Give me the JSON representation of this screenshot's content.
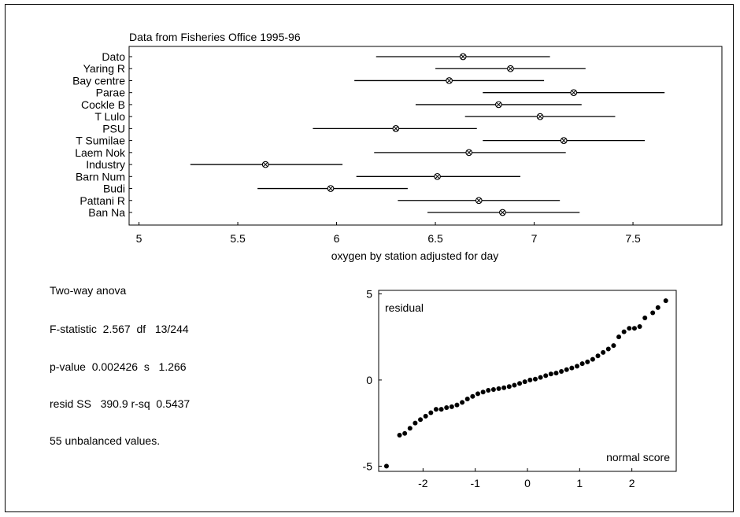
{
  "chart_data": [
    {
      "type": "interval",
      "title": "Data from Fisheries Office 1995-96",
      "xlabel": "oxygen by station adjusted for day",
      "xlim": [
        4.95,
        7.95
      ],
      "xticks": [
        "5",
        "5.5",
        "6",
        "6.5",
        "7",
        "7.5"
      ],
      "xtick_values": [
        5,
        5.5,
        6,
        6.5,
        7,
        7.5
      ],
      "grid": false,
      "stations": [
        {
          "label": "Dato",
          "mean": 6.64,
          "low": 6.2,
          "high": 7.08
        },
        {
          "label": "Yaring R",
          "mean": 6.88,
          "low": 6.5,
          "high": 7.26
        },
        {
          "label": "Bay centre",
          "mean": 6.57,
          "low": 6.09,
          "high": 7.05
        },
        {
          "label": "Parae",
          "mean": 7.2,
          "low": 6.74,
          "high": 7.66
        },
        {
          "label": "Cockle B",
          "mean": 6.82,
          "low": 6.4,
          "high": 7.24
        },
        {
          "label": "T Lulo",
          "mean": 7.03,
          "low": 6.65,
          "high": 7.41
        },
        {
          "label": "PSU",
          "mean": 6.3,
          "low": 5.88,
          "high": 6.71
        },
        {
          "label": "T Sumilae",
          "mean": 7.15,
          "low": 6.74,
          "high": 7.56
        },
        {
          "label": "Laem Nok",
          "mean": 6.67,
          "low": 6.19,
          "high": 7.16
        },
        {
          "label": "Industry",
          "mean": 5.64,
          "low": 5.26,
          "high": 6.03
        },
        {
          "label": "Barn Num",
          "mean": 6.51,
          "low": 6.1,
          "high": 6.93
        },
        {
          "label": "Budi",
          "mean": 5.97,
          "low": 5.6,
          "high": 6.36
        },
        {
          "label": "Pattani R",
          "mean": 6.72,
          "low": 6.31,
          "high": 7.13
        },
        {
          "label": "Ban Na",
          "mean": 6.84,
          "low": 6.46,
          "high": 7.23
        }
      ]
    },
    {
      "type": "scatter",
      "ylabel": "residual",
      "xlabel": "normal score",
      "xlim": [
        -2.85,
        2.85
      ],
      "ylim": [
        -5.3,
        5.2
      ],
      "xticks": [
        "-2",
        "-1",
        "0",
        "1",
        "2"
      ],
      "xtick_values": [
        -2,
        -1,
        0,
        1,
        2
      ],
      "yticks": [
        "5",
        "0",
        "-5"
      ],
      "ytick_values": [
        5,
        0,
        -5
      ],
      "grid": false,
      "points": [
        [
          -2.7,
          -5.0
        ],
        [
          -2.45,
          -3.2
        ],
        [
          -2.35,
          -3.1
        ],
        [
          -2.25,
          -2.8
        ],
        [
          -2.15,
          -2.5
        ],
        [
          -2.05,
          -2.3
        ],
        [
          -1.95,
          -2.1
        ],
        [
          -1.85,
          -1.9
        ],
        [
          -1.75,
          -1.7
        ],
        [
          -1.65,
          -1.7
        ],
        [
          -1.55,
          -1.6
        ],
        [
          -1.45,
          -1.55
        ],
        [
          -1.35,
          -1.45
        ],
        [
          -1.25,
          -1.3
        ],
        [
          -1.15,
          -1.1
        ],
        [
          -1.05,
          -0.95
        ],
        [
          -0.95,
          -0.8
        ],
        [
          -0.85,
          -0.7
        ],
        [
          -0.75,
          -0.6
        ],
        [
          -0.65,
          -0.55
        ],
        [
          -0.55,
          -0.5
        ],
        [
          -0.45,
          -0.45
        ],
        [
          -0.35,
          -0.38
        ],
        [
          -0.25,
          -0.3
        ],
        [
          -0.15,
          -0.2
        ],
        [
          -0.05,
          -0.1
        ],
        [
          0.05,
          0.0
        ],
        [
          0.15,
          0.05
        ],
        [
          0.25,
          0.15
        ],
        [
          0.35,
          0.25
        ],
        [
          0.45,
          0.35
        ],
        [
          0.55,
          0.4
        ],
        [
          0.65,
          0.5
        ],
        [
          0.75,
          0.6
        ],
        [
          0.85,
          0.7
        ],
        [
          0.95,
          0.8
        ],
        [
          1.05,
          0.95
        ],
        [
          1.15,
          1.05
        ],
        [
          1.25,
          1.2
        ],
        [
          1.35,
          1.4
        ],
        [
          1.45,
          1.6
        ],
        [
          1.55,
          1.8
        ],
        [
          1.65,
          2.0
        ],
        [
          1.75,
          2.5
        ],
        [
          1.85,
          2.8
        ],
        [
          1.95,
          3.0
        ],
        [
          2.05,
          3.0
        ],
        [
          2.15,
          3.1
        ],
        [
          2.25,
          3.6
        ],
        [
          2.4,
          3.9
        ],
        [
          2.5,
          4.2
        ],
        [
          2.65,
          4.6
        ]
      ]
    }
  ],
  "stats": {
    "line1": "Two-way anova",
    "line2": "F-statistic  2.567  df   13/244",
    "line3": "p-value  0.002426  s   1.266",
    "line4": "resid SS   390.9 r-sq  0.5437",
    "line5": "55 unbalanced values."
  }
}
